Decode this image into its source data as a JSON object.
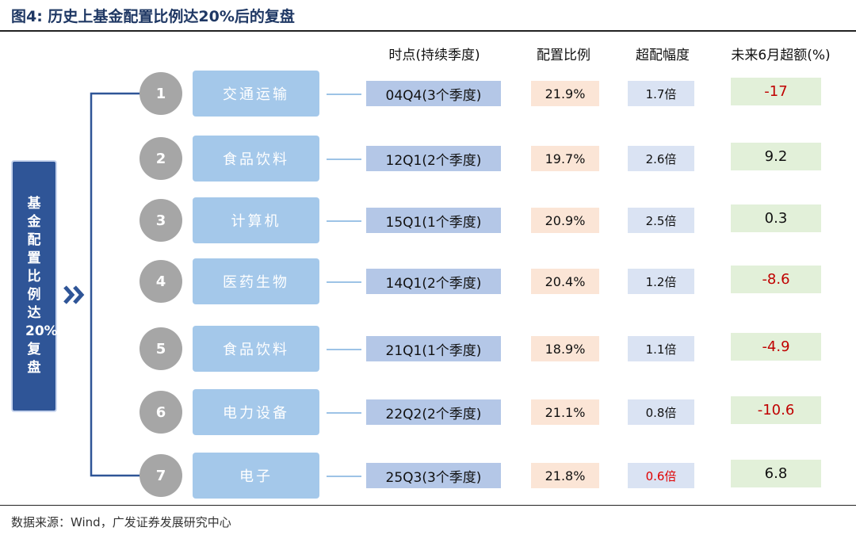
{
  "header": {
    "title": "图4: 历史上基金配置比例达20%后的复盘"
  },
  "side_label": "基金配置比例达20%复盘",
  "columns": [
    "时点(持续季度)",
    "配置比例",
    "超配幅度",
    "未来6月超额(%)"
  ],
  "rows": [
    {
      "number": "1",
      "industry": "交通运输",
      "period": "04Q4(3个季度)",
      "ratio": "21.9%",
      "overweight": "1.7倍",
      "excess": "-17"
    },
    {
      "number": "2",
      "industry": "食品饮料",
      "period": "12Q1(2个季度)",
      "ratio": "19.7%",
      "overweight": "2.6倍",
      "excess": "9.2"
    },
    {
      "number": "3",
      "industry": "计算机",
      "period": "15Q1(1个季度)",
      "ratio": "20.9%",
      "overweight": "2.5倍",
      "excess": "0.3"
    },
    {
      "number": "4",
      "industry": "医药生物",
      "period": "14Q1(2个季度)",
      "ratio": "20.4%",
      "overweight": "1.2倍",
      "excess": "-8.6"
    },
    {
      "number": "5",
      "industry": "食品饮料",
      "period": "21Q1(1个季度)",
      "ratio": "18.9%",
      "overweight": "1.1倍",
      "excess": "-4.9"
    },
    {
      "number": "6",
      "industry": "电力设备",
      "period": "22Q2(2个季度)",
      "ratio": "21.1%",
      "overweight": "0.8倍",
      "excess": "-10.6"
    },
    {
      "number": "7",
      "industry": "电子",
      "period": "25Q3(3个季度)",
      "ratio": "21.8%",
      "overweight": "0.6倍",
      "excess": "6.8"
    }
  ],
  "source": "数据来源：Wind，广发证券发展研究中心"
}
